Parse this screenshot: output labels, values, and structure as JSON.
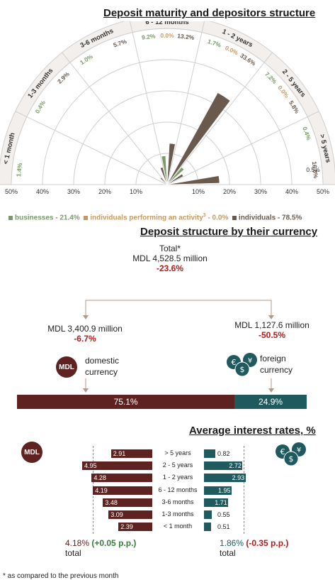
{
  "radar": {
    "title": "Deposit maturity and depositors structure",
    "categories": [
      "< 1 month",
      "1-3 months",
      "3-6 months",
      "6 - 12 months",
      "1 - 2 years",
      "2 - 5 years",
      "> 5 years"
    ],
    "scale_left": [
      "50%",
      "40%",
      "30%",
      "20%",
      "10%"
    ],
    "scale_right": [
      "10%",
      "20%",
      "30%",
      "40%",
      "50%"
    ],
    "legend": {
      "businesses": "businesses - 21.4%",
      "individuals_activity": "individuals performing an activity",
      "individuals_activity_sup": "3",
      "individuals_activity_value": " - 0.0%",
      "individuals": "individuals - 78.5%"
    },
    "colors": {
      "businesses": "#7a9a6a",
      "individuals_activity": "#c59a62",
      "individuals": "#6a5a4e"
    }
  },
  "currency": {
    "title": "Deposit structure by their currency",
    "total_label": "Total*",
    "total_value": "MDL 4,528.5 million",
    "total_change": "-23.6%",
    "domestic_value": "MDL 3,400.9 million",
    "domestic_change": "-6.7%",
    "domestic_label_1": "domestic",
    "domestic_label_2": "currency",
    "foreign_value": "MDL 1,127.6 million",
    "foreign_change": "-50.5%",
    "foreign_label_1": "foreign",
    "foreign_label_2": "currency",
    "mdl_icon_text": "MDL",
    "domestic_share_label": "75.1%",
    "foreign_share_label": "24.9%",
    "domestic_share": 75.1,
    "foreign_share": 24.9,
    "colors": {
      "domestic": "#5e2320",
      "foreign": "#1f5a5f"
    }
  },
  "rates": {
    "title": "Average interest rates, %",
    "mdl_icon_text": "MDL",
    "domestic_total": "4.18%",
    "domestic_change": "(+0.05 p.p.)",
    "domestic_total_label": "total",
    "foreign_total": "1.86%",
    "foreign_change": "(-0.35 p.p.)",
    "foreign_total_label": "total"
  },
  "footnote": "* as compared to the previous month",
  "chart_data": [
    {
      "type": "radar",
      "title": "Deposit maturity and depositors structure",
      "categories": [
        "< 1 month",
        "1-3 months",
        "3-6 months",
        "6 - 12 months",
        "1 - 2 years",
        "2 - 5 years",
        "> 5 years"
      ],
      "series": [
        {
          "name": "businesses - 21.4%",
          "values": [
            1.4,
            0.4,
            1.0,
            9.2,
            1.7,
            7.2,
            0.4
          ],
          "labels": [
            "1.4%",
            "0.4%",
            "1.0%",
            "9.2%",
            "1.7%",
            "7.2%",
            "0.4%"
          ]
        },
        {
          "name": "individuals performing an activity - 0.0%",
          "values": [
            0.0,
            0.0,
            0.0,
            0.0,
            0.0,
            0.0,
            0.0
          ],
          "labels": [
            "",
            "",
            "",
            "0.0%",
            "0.0%",
            "0.0%",
            ""
          ]
        },
        {
          "name": "individuals - 78.5%",
          "values": [
            0.0,
            2.9,
            5.7,
            13.2,
            33.6,
            5.8,
            16.8
          ],
          "labels": [
            "",
            "2.9%",
            "5.7%",
            "13.2%",
            "33.6%",
            "5.8%",
            "16.8%"
          ]
        }
      ],
      "extra_labels": [
        "0.5%"
      ],
      "range": [
        0,
        50
      ]
    },
    {
      "type": "bar",
      "title": "Deposit structure by their currency",
      "categories": [
        "domestic currency",
        "foreign currency"
      ],
      "values": [
        75.1,
        24.9
      ]
    },
    {
      "type": "bar",
      "title": "Average interest rates, %",
      "categories": [
        "> 5 years",
        "2 - 5 years",
        "1 - 2 years",
        "6 - 12 months",
        "3-6 months",
        "1-3 months",
        "< 1 month"
      ],
      "series": [
        {
          "name": "MDL",
          "values": [
            2.91,
            4.95,
            4.28,
            4.19,
            3.48,
            3.09,
            2.39
          ],
          "labels": [
            "2.91",
            "4.95",
            "4.28",
            "4.19",
            "3.48",
            "3.09",
            "2.39"
          ]
        },
        {
          "name": "foreign",
          "values": [
            0.82,
            2.72,
            2.93,
            1.95,
            1.71,
            0.55,
            0.51
          ],
          "labels": [
            "0.82",
            "2.72",
            "2.93",
            "1.95",
            "1.71",
            "0.55",
            "0.51"
          ]
        }
      ]
    }
  ]
}
